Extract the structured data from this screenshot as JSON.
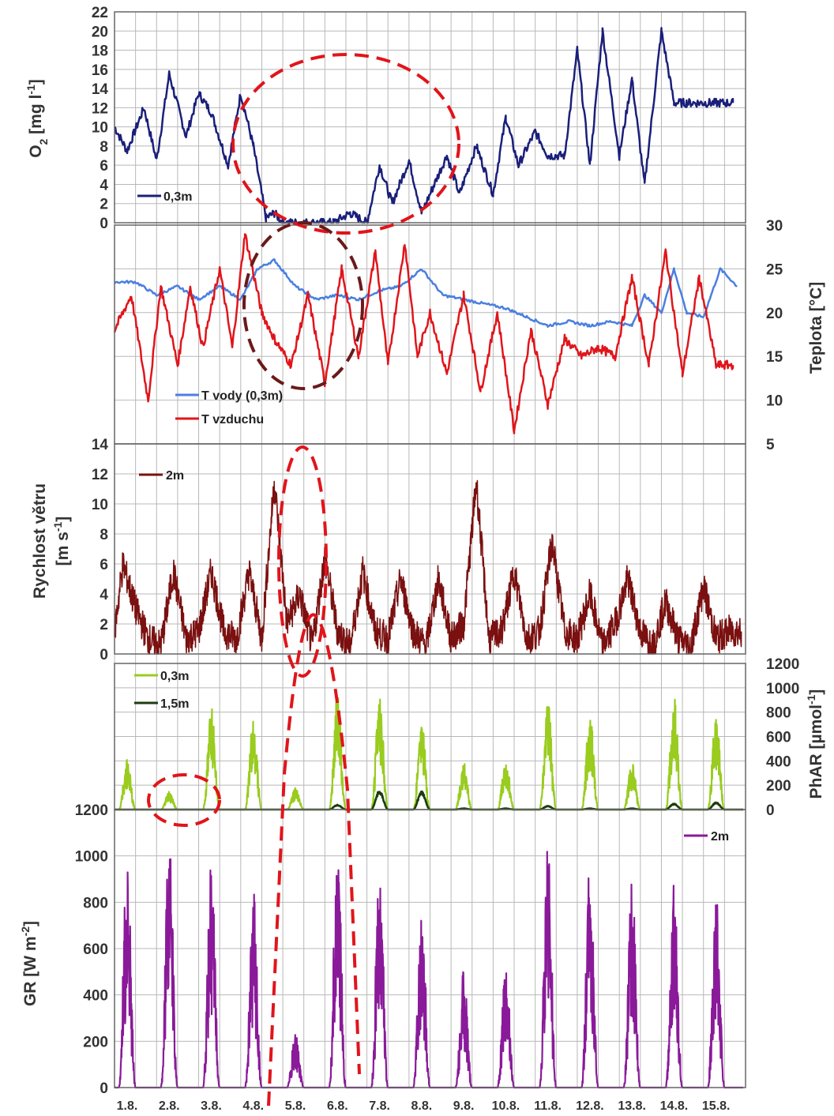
{
  "colors": {
    "o2": "#1a1f7a",
    "water": "#4a7fe0",
    "air": "#e0151b",
    "wind": "#7a1010",
    "phar03": "#99cc1f",
    "phar15": "#1c3d10",
    "gr": "#8a1a9a",
    "ellipse_red": "#e0151b",
    "ellipse_dark": "#6a1a1a",
    "grid": "#b8b8b8"
  },
  "x_ticks": [
    "1.8.",
    "2.8.",
    "3.8.",
    "4.8.",
    "5.8.",
    "6.8.",
    "7.8.",
    "8.8.",
    "9.8.",
    "10.8.",
    "11.8.",
    "12.8.",
    "13.8.",
    "14.8.",
    "15.8."
  ],
  "chart_data": [
    {
      "type": "line",
      "ylabel_main": "O",
      "ylabel_sub": "2",
      "ylabel_rest": " [mg l",
      "ylabel_sup": "-1",
      "ylabel_end": "]",
      "ylim": [
        0,
        22
      ],
      "yticks": [
        "0",
        "2",
        "4",
        "6",
        "8",
        "10",
        "12",
        "14",
        "16",
        "18",
        "20",
        "22"
      ],
      "grid": true,
      "series": [
        {
          "name": "0,3m",
          "x": [
            1.0,
            1.3,
            1.7,
            2.0,
            2.3,
            2.7,
            3.0,
            3.3,
            3.7,
            4.0,
            4.3,
            4.6,
            4.8,
            5.0,
            5.2,
            5.5,
            5.8,
            6.2,
            6.6,
            7.0,
            7.3,
            7.6,
            8.0,
            8.3,
            8.6,
            8.9,
            9.2,
            9.6,
            10.0,
            10.3,
            10.6,
            11.0,
            11.3,
            11.7,
            12.0,
            12.3,
            12.6,
            13.0,
            13.3,
            13.6,
            14.0,
            14.3,
            14.6,
            15.0,
            15.3,
            15.7
          ],
          "y": [
            10,
            7.5,
            12,
            6.5,
            15.5,
            9,
            13.5,
            11.5,
            6,
            13.5,
            8,
            0.5,
            1,
            0,
            0,
            0,
            0,
            0,
            1,
            0,
            6,
            2,
            6.5,
            1,
            4,
            7,
            3,
            8,
            3,
            11,
            6,
            9.5,
            7,
            7,
            18,
            6,
            20,
            7,
            15,
            4,
            20,
            12.5,
            12.5,
            12.5,
            12.5,
            12.5
          ]
        }
      ]
    },
    {
      "type": "line",
      "ylabel": "Teplota [°C]",
      "ylim": [
        5,
        30
      ],
      "yticks": [
        "5",
        "10",
        "15",
        "20",
        "25",
        "30"
      ],
      "grid": true,
      "series": [
        {
          "name": "T vody (0,3m)",
          "x": [
            1.0,
            1.5,
            2.0,
            2.5,
            3.0,
            3.5,
            4.0,
            4.4,
            4.8,
            5.3,
            5.8,
            6.3,
            6.8,
            7.3,
            7.8,
            8.3,
            8.8,
            9.3,
            9.8,
            10.3,
            10.8,
            11.3,
            11.8,
            12.3,
            12.8,
            13.3,
            13.6,
            14.0,
            14.3,
            14.6,
            15.0,
            15.4,
            15.8
          ],
          "y": [
            23.5,
            23.5,
            22,
            23,
            21.5,
            23,
            21.5,
            25,
            26,
            23,
            21.5,
            22,
            21.5,
            22.5,
            23,
            25,
            22,
            21.5,
            21,
            20.5,
            19.5,
            18.5,
            19,
            18.5,
            19,
            18.5,
            22,
            20,
            25,
            20,
            19.5,
            25,
            23
          ]
        },
        {
          "name": "T vzduchu",
          "x": [
            1.0,
            1.4,
            1.8,
            2.1,
            2.5,
            2.8,
            3.1,
            3.5,
            3.8,
            4.1,
            4.5,
            4.8,
            5.2,
            5.6,
            6.0,
            6.4,
            6.8,
            7.2,
            7.5,
            7.9,
            8.2,
            8.5,
            8.9,
            9.3,
            9.7,
            10.1,
            10.5,
            10.9,
            11.3,
            11.7,
            12.1,
            12.5,
            12.9,
            13.3,
            13.7,
            14.1,
            14.5,
            14.9,
            15.3,
            15.7
          ],
          "y": [
            18,
            22,
            10,
            23,
            14,
            23,
            16,
            25,
            16,
            29,
            20,
            17,
            14,
            22,
            12,
            25,
            15,
            27,
            14,
            28,
            15,
            20,
            13,
            22,
            11,
            20,
            6.5,
            18,
            9.5,
            17,
            15,
            16,
            15,
            24,
            14,
            27,
            13,
            24,
            14,
            14
          ]
        }
      ]
    },
    {
      "type": "line",
      "ylabel_line1": "Rychlost větru",
      "ylabel_line2_main": "[m s",
      "ylabel_line2_sup": "-1",
      "ylabel_line2_end": "]",
      "ylim": [
        0,
        14
      ],
      "yticks": [
        "0",
        "2",
        "4",
        "6",
        "8",
        "10",
        "12",
        "14"
      ],
      "grid": true,
      "series": [
        {
          "name": "2m",
          "x": [
            1.0,
            1.2,
            1.5,
            1.8,
            2.1,
            2.4,
            2.7,
            3.0,
            3.3,
            3.6,
            3.9,
            4.2,
            4.5,
            4.8,
            5.1,
            5.4,
            5.7,
            6.0,
            6.3,
            6.6,
            6.9,
            7.2,
            7.5,
            7.8,
            8.1,
            8.4,
            8.7,
            9.0,
            9.3,
            9.6,
            9.9,
            10.2,
            10.5,
            10.8,
            11.1,
            11.4,
            11.7,
            12.0,
            12.3,
            12.6,
            12.9,
            13.2,
            13.5,
            13.8,
            14.1,
            14.4,
            14.7,
            15.0,
            15.3,
            15.6,
            15.9
          ],
          "y": [
            1.5,
            6,
            3,
            1,
            0.5,
            5.5,
            1,
            1.5,
            5.5,
            1.5,
            1,
            5.5,
            1,
            11.5,
            2,
            4,
            0.5,
            6.5,
            1.5,
            0.5,
            5.5,
            1.5,
            1,
            5,
            1.5,
            0.5,
            5,
            1,
            2,
            11.5,
            1,
            1.5,
            5.5,
            1,
            1.5,
            7.5,
            1.5,
            1,
            4,
            0.5,
            2,
            5,
            1.5,
            0.5,
            3.5,
            1,
            0.5,
            4.5,
            1,
            1.5,
            1.5
          ]
        }
      ]
    },
    {
      "type": "line",
      "ylabel_main": "PhAR  [µmol",
      "ylabel_sup": "-1",
      "ylabel_end": "]",
      "ylim": [
        0,
        1200
      ],
      "yticks": [
        "0",
        "200",
        "400",
        "600",
        "800",
        "1000",
        "1200"
      ],
      "grid": true,
      "series": [
        {
          "name": "0,3m",
          "peak_days": [
            1.3,
            2.3,
            3.3,
            4.3,
            5.3,
            6.3,
            7.3,
            8.3,
            9.3,
            10.3,
            11.3,
            12.3,
            13.3,
            14.3,
            15.3
          ],
          "peaks": [
            420,
            150,
            850,
            760,
            180,
            1010,
            950,
            760,
            390,
            430,
            910,
            800,
            390,
            940,
            820
          ]
        },
        {
          "name": "1,5m",
          "peak_days": [
            1.3,
            2.3,
            3.3,
            4.3,
            5.3,
            6.3,
            7.3,
            8.3,
            9.3,
            10.3,
            11.3,
            12.3,
            13.3,
            14.3,
            15.3
          ],
          "peaks": [
            0,
            0,
            0,
            0,
            0,
            40,
            160,
            150,
            10,
            10,
            30,
            10,
            10,
            50,
            60
          ]
        }
      ]
    },
    {
      "type": "line",
      "ylabel_main": "GR [W m",
      "ylabel_sup": "-2",
      "ylabel_end": "]",
      "ylim": [
        0,
        1200
      ],
      "yticks": [
        "0",
        "200",
        "400",
        "600",
        "800",
        "1000",
        "1200"
      ],
      "grid": true,
      "series": [
        {
          "name": "2m",
          "peak_days": [
            1.3,
            2.3,
            3.3,
            4.3,
            5.3,
            6.3,
            7.3,
            8.3,
            9.3,
            10.3,
            11.3,
            12.3,
            13.3,
            14.3,
            15.3
          ],
          "peaks": [
            1000,
            1100,
            980,
            860,
            250,
            1080,
            990,
            850,
            510,
            580,
            1070,
            980,
            920,
            880,
            890
          ]
        }
      ]
    }
  ]
}
